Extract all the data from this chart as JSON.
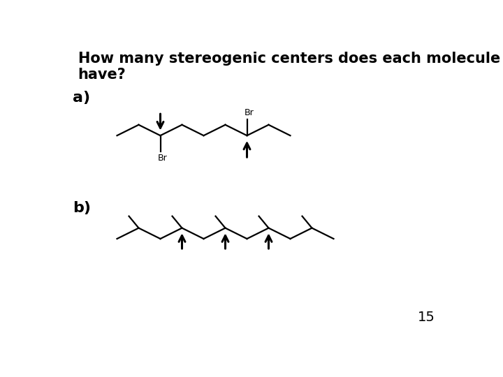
{
  "title_line1": "How many stereogenic centers does each molecule",
  "title_line2": "have?",
  "title_fontsize": 15,
  "label_a": "a)",
  "label_b": "b)",
  "label_fontsize": 16,
  "page_number": "15",
  "background_color": "#ffffff",
  "line_color": "#000000",
  "br_label": "Br",
  "mol_a": {
    "nodes_x": [
      1.0,
      1.4,
      1.8,
      2.2,
      2.6,
      3.0,
      3.4,
      3.8,
      4.2
    ],
    "nodes_y": [
      3.72,
      3.92,
      3.72,
      3.92,
      3.72,
      3.92,
      3.72,
      3.92,
      3.72
    ],
    "sc1_idx": 2,
    "sc2_idx": 6
  },
  "mol_b": {
    "nodes_x": [
      1.0,
      1.4,
      1.8,
      2.2,
      2.6,
      3.0,
      3.4,
      3.8,
      4.2,
      4.6,
      5.0
    ],
    "nodes_y": [
      1.8,
      2.0,
      1.8,
      2.0,
      1.8,
      2.0,
      1.8,
      2.0,
      1.8,
      2.0,
      1.8
    ],
    "branch_peak_indices": [
      1,
      3,
      5,
      7,
      9
    ],
    "stereo_indices": [
      3,
      5,
      7
    ]
  }
}
